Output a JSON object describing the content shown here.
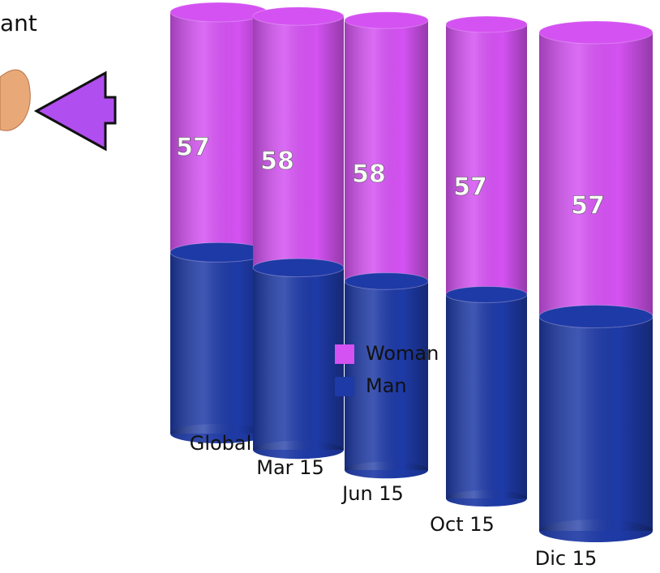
{
  "chart_data": {
    "type": "bar",
    "stacked": true,
    "heading_fragment": "ant",
    "categories": [
      "Global",
      "Mar 15",
      "Jun 15",
      "Oct 15",
      "Dic 15"
    ],
    "series": [
      {
        "name": "Woman",
        "color": "#d452f2",
        "values": [
          57,
          58,
          58,
          57,
          57
        ]
      },
      {
        "name": "Man",
        "color": "#1e3aa6",
        "values": [
          43,
          42,
          42,
          43,
          43
        ]
      }
    ],
    "legend": "left"
  }
}
